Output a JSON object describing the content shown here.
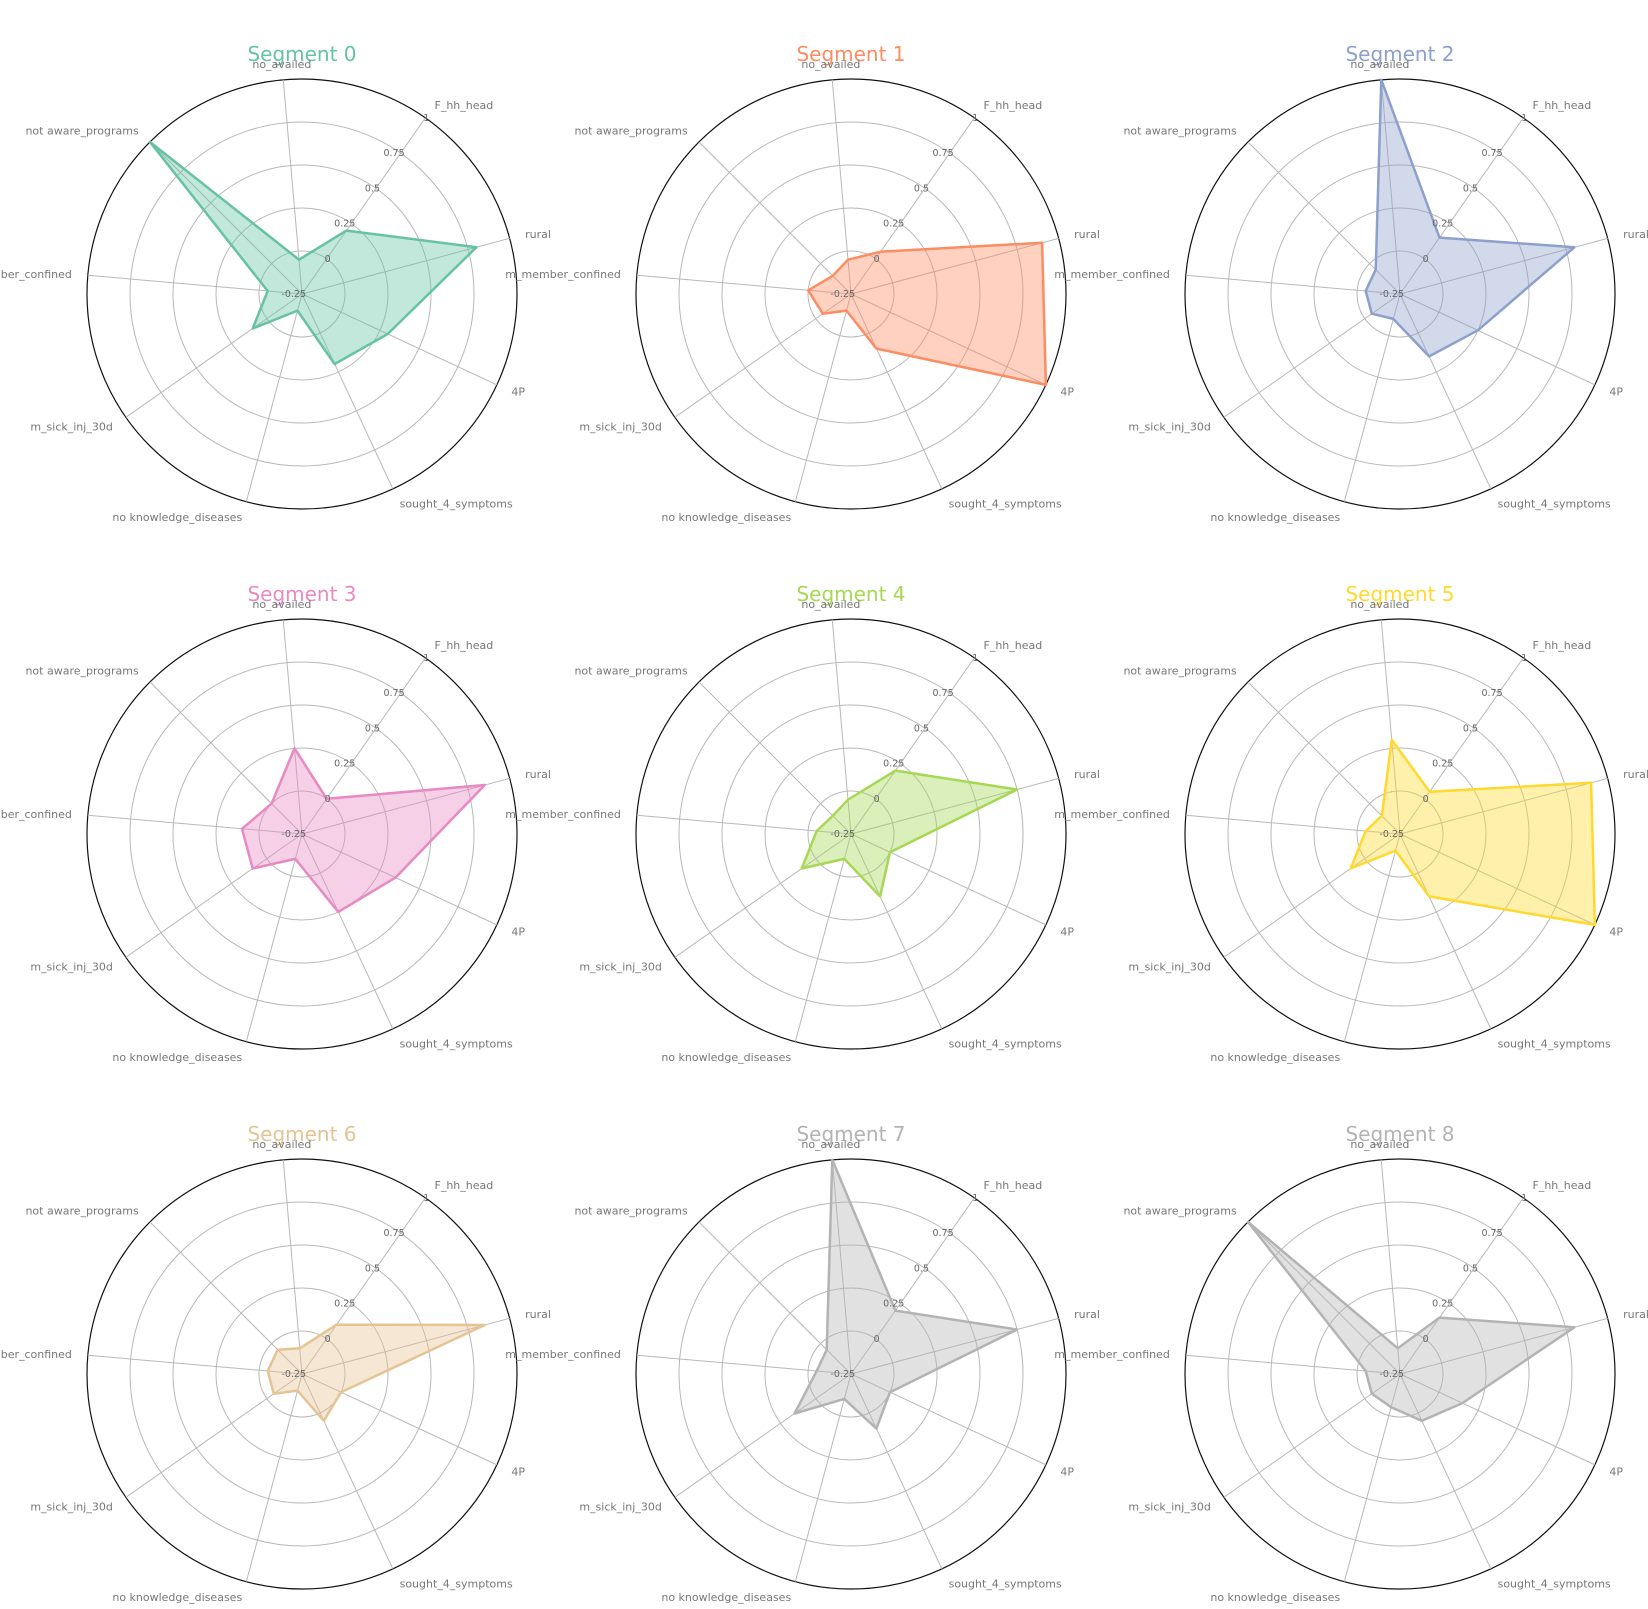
{
  "chart_data": {
    "type": "radar",
    "axes": [
      "F_hh_head",
      "rural",
      "4P",
      "sought_4_symptoms",
      "no knowledge_diseases",
      "m_sick_inj_30d",
      "m_member_confined",
      "not aware_programs",
      "no_availed"
    ],
    "tick_labels": [
      "-0.25",
      "0",
      "0.25",
      "0.5",
      "0.75",
      "1"
    ],
    "tick_values": [
      -0.25,
      0,
      0.25,
      0.5,
      0.75,
      1
    ],
    "rlim": [
      -0.25,
      1
    ],
    "grid": true,
    "panels": [
      {
        "title": "Segment 0",
        "color": "#66c2a5",
        "values": [
          0.2,
          0.8,
          0.3,
          0.2,
          -0.15,
          0.1,
          -0.05,
          1.0,
          -0.05
        ]
      },
      {
        "title": "Segment 1",
        "color": "#fc8d62",
        "values": [
          0.05,
          0.9,
          1.0,
          0.1,
          -0.15,
          -0.05,
          0.0,
          -0.1,
          -0.05
        ]
      },
      {
        "title": "Segment 2",
        "color": "#8da0cb",
        "values": [
          0.15,
          0.8,
          0.25,
          0.15,
          -0.1,
          -0.05,
          -0.05,
          -0.05,
          1.0
        ]
      },
      {
        "title": "Segment 3",
        "color": "#e78ac3",
        "values": [
          0.0,
          0.85,
          0.35,
          0.25,
          -0.1,
          0.1,
          0.1,
          0.0,
          0.25
        ]
      },
      {
        "title": "Segment 4",
        "color": "#a6d854",
        "values": [
          0.2,
          0.75,
          0.0,
          0.15,
          -0.1,
          0.1,
          -0.05,
          -0.1,
          -0.05
        ]
      },
      {
        "title": "Segment 5",
        "color": "#ffd92f",
        "values": [
          0.05,
          0.9,
          1.0,
          0.15,
          -0.15,
          0.1,
          -0.05,
          -0.1,
          0.3
        ]
      },
      {
        "title": "Segment 6",
        "color": "#e5c494",
        "values": [
          0.1,
          0.85,
          0.0,
          0.05,
          -0.15,
          -0.05,
          -0.05,
          -0.05,
          -0.1
        ]
      },
      {
        "title": "Segment 7",
        "color": "#b3b3b3",
        "values": [
          0.2,
          0.75,
          0.0,
          0.1,
          -0.1,
          0.15,
          -0.05,
          -0.05,
          1.0
        ]
      },
      {
        "title": "Segment 8",
        "color": "#b3b3b3",
        "values": [
          0.15,
          0.8,
          0.15,
          0.05,
          -0.05,
          -0.05,
          -0.05,
          1.0,
          -0.1
        ]
      }
    ]
  }
}
